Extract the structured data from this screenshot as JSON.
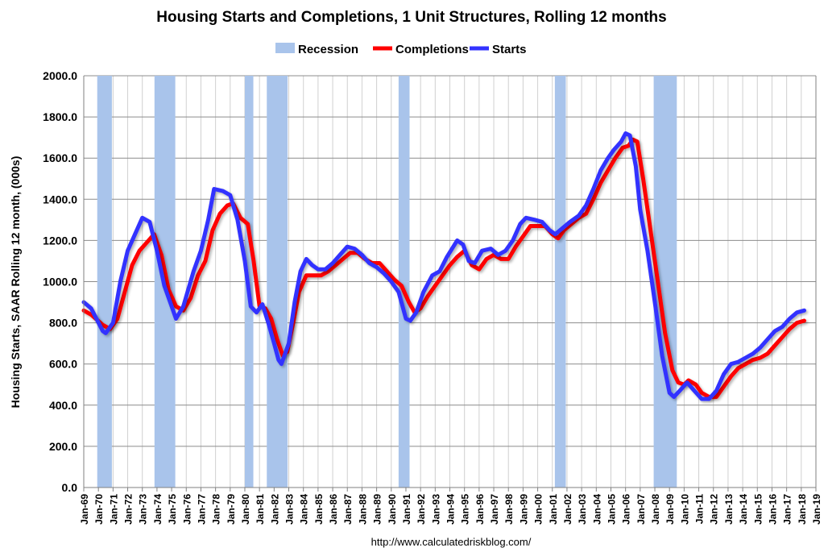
{
  "chart_data": {
    "type": "line",
    "title": "Housing Starts and Completions, 1 Unit Structures, Rolling 12 months",
    "ylabel": "Housing Starts, SAAR Rolling 12 month, (000s)",
    "xlabel": "",
    "footer": "http://www.calculatedriskblog.com/",
    "ylim": [
      0,
      2000
    ],
    "xlim": [
      1969,
      2019
    ],
    "y_ticks": [
      "0.0",
      "200.0",
      "400.0",
      "600.0",
      "800.0",
      "1000.0",
      "1200.0",
      "1400.0",
      "1600.0",
      "1800.0",
      "2000.0"
    ],
    "y_tick_values": [
      0,
      200,
      400,
      600,
      800,
      1000,
      1200,
      1400,
      1600,
      1800,
      2000
    ],
    "x_ticks": [
      "Jan-69",
      "Jan-70",
      "Jan-71",
      "Jan-72",
      "Jan-73",
      "Jan-74",
      "Jan-75",
      "Jan-76",
      "Jan-77",
      "Jan-78",
      "Jan-79",
      "Jan-80",
      "Jan-81",
      "Jan-82",
      "Jan-83",
      "Jan-84",
      "Jan-85",
      "Jan-86",
      "Jan-87",
      "Jan-88",
      "Jan-89",
      "Jan-90",
      "Jan-91",
      "Jan-92",
      "Jan-93",
      "Jan-94",
      "Jan-95",
      "Jan-96",
      "Jan-97",
      "Jan-98",
      "Jan-99",
      "Jan-00",
      "Jan-01",
      "Jan-02",
      "Jan-03",
      "Jan-04",
      "Jan-05",
      "Jan-06",
      "Jan-07",
      "Jan-08",
      "Jan-09",
      "Jan-10",
      "Jan-11",
      "Jan-12",
      "Jan-13",
      "Jan-14",
      "Jan-15",
      "Jan-16",
      "Jan-17",
      "Jan-18",
      "Jan-19"
    ],
    "grid": true,
    "legend_position": "top-center",
    "legend": [
      {
        "name": "Recession",
        "color": "#a9c4eb",
        "kind": "area"
      },
      {
        "name": "Completions",
        "color": "#ff0000",
        "kind": "line"
      },
      {
        "name": "Starts",
        "color": "#3333ff",
        "kind": "line"
      }
    ],
    "recessions": [
      [
        1969.92,
        1970.92
      ],
      [
        1973.83,
        1975.25
      ],
      [
        1980.0,
        1980.58
      ],
      [
        1981.5,
        1982.92
      ],
      [
        1990.5,
        1991.25
      ],
      [
        2001.17,
        2001.92
      ],
      [
        2007.92,
        2009.5
      ]
    ],
    "series": [
      {
        "name": "Starts",
        "color": "#3333ff",
        "points": [
          [
            1969.0,
            900
          ],
          [
            1969.5,
            870
          ],
          [
            1970.3,
            760
          ],
          [
            1970.5,
            750
          ],
          [
            1971.0,
            800
          ],
          [
            1971.5,
            1000
          ],
          [
            1972.0,
            1150
          ],
          [
            1972.5,
            1230
          ],
          [
            1973.0,
            1310
          ],
          [
            1973.5,
            1290
          ],
          [
            1974.0,
            1150
          ],
          [
            1974.5,
            980
          ],
          [
            1975.0,
            880
          ],
          [
            1975.3,
            820
          ],
          [
            1975.8,
            880
          ],
          [
            1976.5,
            1050
          ],
          [
            1977.0,
            1150
          ],
          [
            1977.5,
            1300
          ],
          [
            1977.9,
            1450
          ],
          [
            1978.5,
            1440
          ],
          [
            1979.0,
            1420
          ],
          [
            1979.5,
            1300
          ],
          [
            1980.0,
            1100
          ],
          [
            1980.4,
            880
          ],
          [
            1980.8,
            850
          ],
          [
            1981.2,
            890
          ],
          [
            1981.6,
            800
          ],
          [
            1982.0,
            700
          ],
          [
            1982.3,
            620
          ],
          [
            1982.5,
            600
          ],
          [
            1983.0,
            700
          ],
          [
            1983.4,
            900
          ],
          [
            1983.8,
            1050
          ],
          [
            1984.2,
            1110
          ],
          [
            1984.6,
            1080
          ],
          [
            1985.0,
            1060
          ],
          [
            1985.5,
            1060
          ],
          [
            1986.0,
            1090
          ],
          [
            1986.5,
            1130
          ],
          [
            1987.0,
            1170
          ],
          [
            1987.5,
            1160
          ],
          [
            1988.0,
            1130
          ],
          [
            1988.5,
            1090
          ],
          [
            1989.0,
            1070
          ],
          [
            1989.5,
            1040
          ],
          [
            1990.0,
            1000
          ],
          [
            1990.5,
            950
          ],
          [
            1991.0,
            820
          ],
          [
            1991.3,
            810
          ],
          [
            1991.7,
            850
          ],
          [
            1992.2,
            950
          ],
          [
            1992.8,
            1030
          ],
          [
            1993.3,
            1050
          ],
          [
            1993.8,
            1120
          ],
          [
            1994.5,
            1200
          ],
          [
            1994.9,
            1180
          ],
          [
            1995.3,
            1100
          ],
          [
            1995.7,
            1090
          ],
          [
            1996.2,
            1150
          ],
          [
            1996.8,
            1160
          ],
          [
            1997.3,
            1130
          ],
          [
            1997.8,
            1150
          ],
          [
            1998.3,
            1200
          ],
          [
            1998.8,
            1280
          ],
          [
            1999.2,
            1310
          ],
          [
            1999.8,
            1300
          ],
          [
            2000.3,
            1290
          ],
          [
            2000.8,
            1250
          ],
          [
            2001.2,
            1230
          ],
          [
            2001.7,
            1260
          ],
          [
            2002.2,
            1290
          ],
          [
            2002.8,
            1320
          ],
          [
            2003.3,
            1370
          ],
          [
            2003.8,
            1450
          ],
          [
            2004.3,
            1540
          ],
          [
            2004.8,
            1600
          ],
          [
            2005.2,
            1640
          ],
          [
            2005.7,
            1680
          ],
          [
            2006.0,
            1720
          ],
          [
            2006.3,
            1710
          ],
          [
            2006.7,
            1560
          ],
          [
            2007.0,
            1350
          ],
          [
            2007.5,
            1150
          ],
          [
            2008.0,
            900
          ],
          [
            2008.5,
            640
          ],
          [
            2009.0,
            460
          ],
          [
            2009.3,
            440
          ],
          [
            2009.7,
            470
          ],
          [
            2010.2,
            510
          ],
          [
            2010.7,
            470
          ],
          [
            2011.2,
            430
          ],
          [
            2011.7,
            430
          ],
          [
            2012.2,
            470
          ],
          [
            2012.7,
            550
          ],
          [
            2013.2,
            600
          ],
          [
            2013.7,
            610
          ],
          [
            2014.2,
            630
          ],
          [
            2014.7,
            650
          ],
          [
            2015.2,
            680
          ],
          [
            2015.7,
            720
          ],
          [
            2016.2,
            760
          ],
          [
            2016.7,
            780
          ],
          [
            2017.2,
            820
          ],
          [
            2017.7,
            850
          ],
          [
            2018.2,
            860
          ]
        ]
      },
      {
        "name": "Completions",
        "color": "#ff0000",
        "points": [
          [
            1969.0,
            860
          ],
          [
            1969.5,
            840
          ],
          [
            1970.3,
            790
          ],
          [
            1970.8,
            770
          ],
          [
            1971.3,
            820
          ],
          [
            1971.8,
            950
          ],
          [
            1972.3,
            1080
          ],
          [
            1972.8,
            1150
          ],
          [
            1973.3,
            1190
          ],
          [
            1973.8,
            1230
          ],
          [
            1974.3,
            1130
          ],
          [
            1974.8,
            960
          ],
          [
            1975.3,
            880
          ],
          [
            1975.8,
            860
          ],
          [
            1976.3,
            920
          ],
          [
            1976.8,
            1030
          ],
          [
            1977.3,
            1100
          ],
          [
            1977.8,
            1250
          ],
          [
            1978.3,
            1330
          ],
          [
            1978.8,
            1370
          ],
          [
            1979.2,
            1380
          ],
          [
            1979.7,
            1310
          ],
          [
            1980.2,
            1280
          ],
          [
            1980.6,
            1100
          ],
          [
            1981.0,
            880
          ],
          [
            1981.4,
            870
          ],
          [
            1981.8,
            820
          ],
          [
            1982.2,
            720
          ],
          [
            1982.6,
            640
          ],
          [
            1982.9,
            660
          ],
          [
            1983.3,
            800
          ],
          [
            1983.7,
            950
          ],
          [
            1984.2,
            1030
          ],
          [
            1984.7,
            1030
          ],
          [
            1985.2,
            1030
          ],
          [
            1985.7,
            1050
          ],
          [
            1986.2,
            1080
          ],
          [
            1986.7,
            1110
          ],
          [
            1987.2,
            1140
          ],
          [
            1987.7,
            1140
          ],
          [
            1988.2,
            1110
          ],
          [
            1988.7,
            1090
          ],
          [
            1989.2,
            1090
          ],
          [
            1989.7,
            1050
          ],
          [
            1990.2,
            1010
          ],
          [
            1990.7,
            980
          ],
          [
            1991.2,
            900
          ],
          [
            1991.6,
            850
          ],
          [
            1992.0,
            870
          ],
          [
            1992.5,
            930
          ],
          [
            1993.0,
            980
          ],
          [
            1993.5,
            1030
          ],
          [
            1994.0,
            1080
          ],
          [
            1994.5,
            1120
          ],
          [
            1995.0,
            1150
          ],
          [
            1995.5,
            1080
          ],
          [
            1996.0,
            1060
          ],
          [
            1996.5,
            1110
          ],
          [
            1997.0,
            1130
          ],
          [
            1997.5,
            1110
          ],
          [
            1998.0,
            1110
          ],
          [
            1998.5,
            1170
          ],
          [
            1999.0,
            1220
          ],
          [
            1999.5,
            1270
          ],
          [
            2000.0,
            1270
          ],
          [
            2000.5,
            1270
          ],
          [
            2001.0,
            1230
          ],
          [
            2001.4,
            1210
          ],
          [
            2001.8,
            1250
          ],
          [
            2002.3,
            1280
          ],
          [
            2002.8,
            1310
          ],
          [
            2003.3,
            1330
          ],
          [
            2003.8,
            1400
          ],
          [
            2004.3,
            1480
          ],
          [
            2004.8,
            1540
          ],
          [
            2005.3,
            1600
          ],
          [
            2005.8,
            1650
          ],
          [
            2006.2,
            1660
          ],
          [
            2006.5,
            1690
          ],
          [
            2006.8,
            1680
          ],
          [
            2007.2,
            1500
          ],
          [
            2007.7,
            1250
          ],
          [
            2008.2,
            1000
          ],
          [
            2008.7,
            750
          ],
          [
            2009.2,
            570
          ],
          [
            2009.6,
            510
          ],
          [
            2010.0,
            500
          ],
          [
            2010.3,
            520
          ],
          [
            2010.8,
            500
          ],
          [
            2011.2,
            460
          ],
          [
            2011.7,
            440
          ],
          [
            2012.2,
            440
          ],
          [
            2012.7,
            490
          ],
          [
            2013.2,
            540
          ],
          [
            2013.7,
            580
          ],
          [
            2014.2,
            600
          ],
          [
            2014.7,
            620
          ],
          [
            2015.2,
            630
          ],
          [
            2015.7,
            650
          ],
          [
            2016.2,
            690
          ],
          [
            2016.7,
            730
          ],
          [
            2017.2,
            770
          ],
          [
            2017.7,
            800
          ],
          [
            2018.2,
            810
          ]
        ]
      }
    ]
  }
}
